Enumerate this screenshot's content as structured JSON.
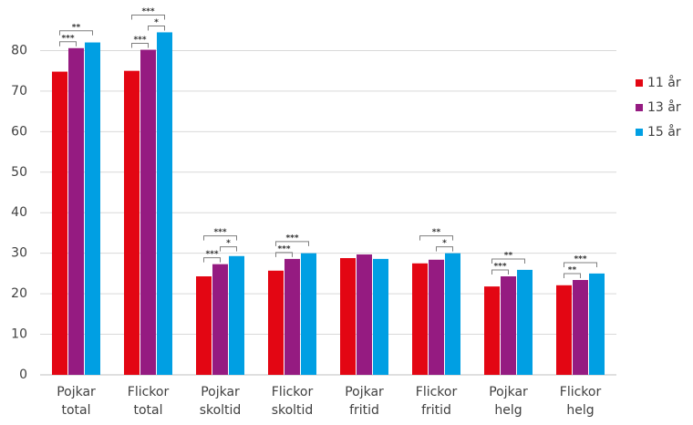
{
  "chart_data": {
    "type": "bar",
    "categories": [
      "Pojkar total",
      "Flickor total",
      "Pojkar skoltid",
      "Flickor skoltid",
      "Pojkar fritid",
      "Flickor fritid",
      "Pojkar helg",
      "Flickor helg"
    ],
    "series": [
      {
        "name": "11 år",
        "color": "#e30613",
        "values": [
          74.8,
          75,
          24.3,
          25.7,
          28.8,
          27.5,
          21.8,
          22.1
        ]
      },
      {
        "name": "13 år",
        "color": "#951b81",
        "values": [
          80.6,
          80.2,
          27.3,
          28.6,
          29.7,
          28.4,
          24.3,
          23.4
        ]
      },
      {
        "name": "15 år",
        "color": "#009fe3",
        "values": [
          82,
          84.5,
          29.3,
          30,
          28.6,
          30,
          25.9,
          25
        ]
      }
    ],
    "annotations": [
      {
        "category": "Pojkar total",
        "from": "11 år",
        "to": "13 år",
        "text": "***"
      },
      {
        "category": "Pojkar total",
        "from": "11 år",
        "to": "15 år",
        "text": "**"
      },
      {
        "category": "Flickor total",
        "from": "11 år",
        "to": "13 år",
        "text": "***"
      },
      {
        "category": "Flickor total",
        "from": "13 år",
        "to": "15 år",
        "text": "*"
      },
      {
        "category": "Flickor total",
        "from": "11 år",
        "to": "15 år",
        "text": "***"
      },
      {
        "category": "Pojkar skoltid",
        "from": "11 år",
        "to": "13 år",
        "text": "***"
      },
      {
        "category": "Pojkar skoltid",
        "from": "13 år",
        "to": "15 år",
        "text": "*"
      },
      {
        "category": "Pojkar skoltid",
        "from": "11 år",
        "to": "15 år",
        "text": "***"
      },
      {
        "category": "Flickor skoltid",
        "from": "11 år",
        "to": "13 år",
        "text": "***"
      },
      {
        "category": "Flickor skoltid",
        "from": "11 år",
        "to": "15 år",
        "text": "***"
      },
      {
        "category": "Flickor fritid",
        "from": "13 år",
        "to": "15 år",
        "text": "*"
      },
      {
        "category": "Flickor fritid",
        "from": "11 år",
        "to": "15 år",
        "text": "**"
      },
      {
        "category": "Pojkar helg",
        "from": "11 år",
        "to": "13 år",
        "text": "***"
      },
      {
        "category": "Pojkar helg",
        "from": "11 år",
        "to": "15 år",
        "text": "**"
      },
      {
        "category": "Flickor helg",
        "from": "11 år",
        "to": "13 år",
        "text": "**"
      },
      {
        "category": "Flickor helg",
        "from": "11 år",
        "to": "15 år",
        "text": "***"
      }
    ],
    "ylim": [
      0,
      90
    ],
    "yticks": [
      0,
      10,
      20,
      30,
      40,
      50,
      60,
      70,
      80
    ],
    "grid": true,
    "legend": "right"
  }
}
